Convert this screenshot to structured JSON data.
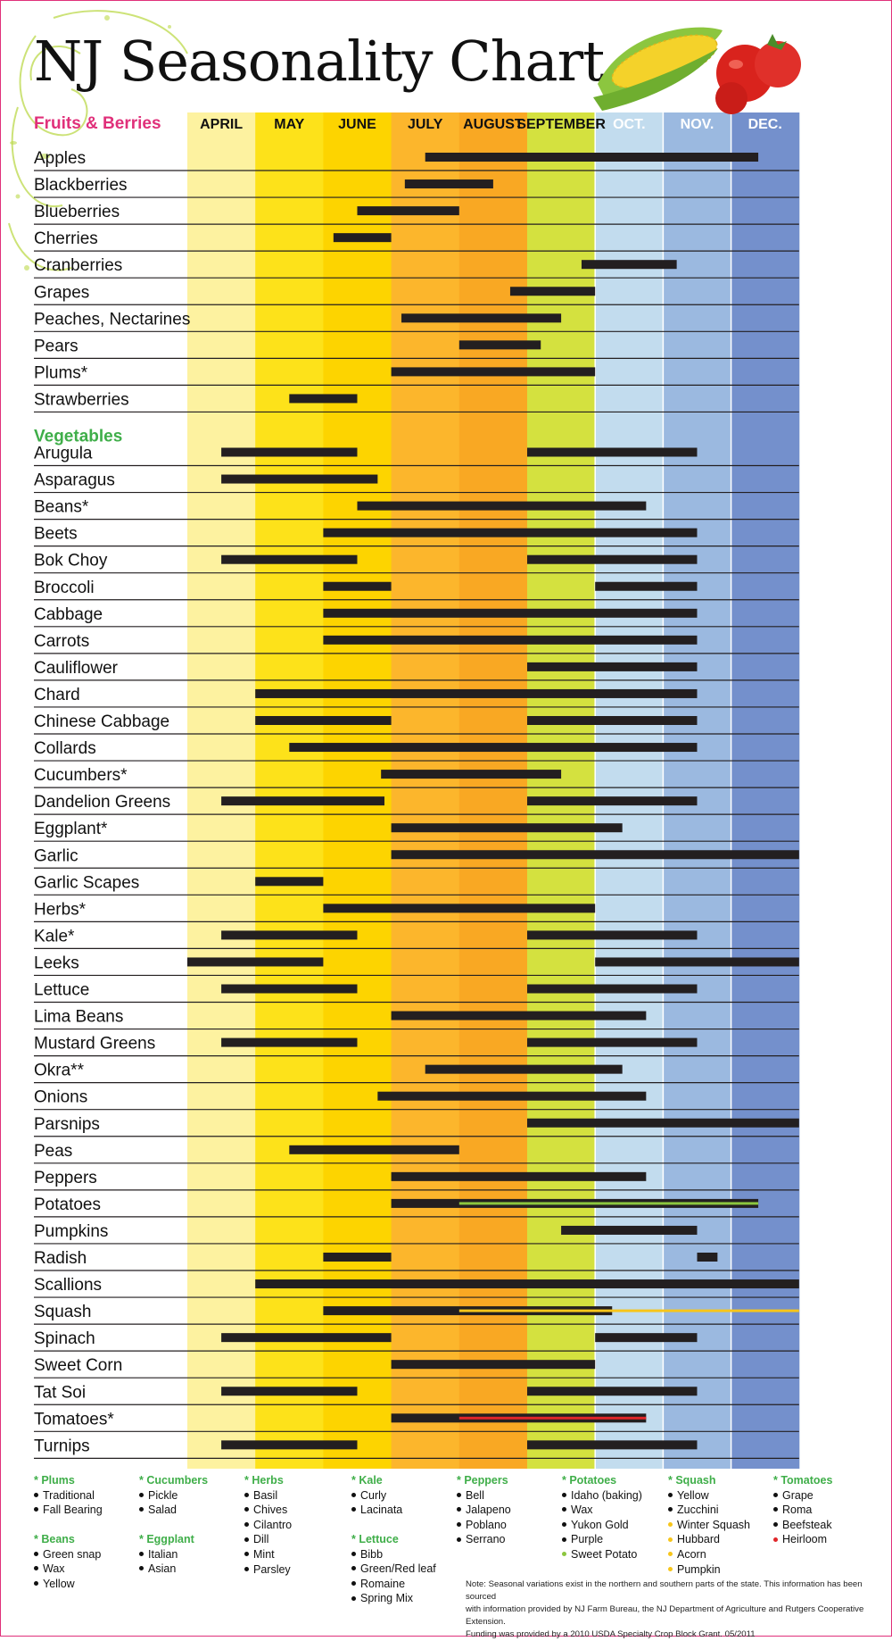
{
  "title": "NJ Seasonality Chart",
  "months": [
    "APRIL",
    "MAY",
    "JUNE",
    "JULY",
    "AUGUST",
    "SEPTEMBER",
    "OCT.",
    "NOV.",
    "DEC."
  ],
  "colors": {
    "month_bands": [
      "#fdf2a0",
      "#fde21a",
      "#fdd400",
      "#fcb62c",
      "#f9a823",
      "#d4e13f",
      "#c2dcee",
      "#9bb9e0",
      "#7490cc"
    ],
    "bar": "#231f20",
    "fruit_heading": "#e0307a",
    "veg_heading": "#3fae49",
    "month_header_text": "#111111",
    "month_header_text_light": "#ffffff",
    "yellow_variety": "#f7c51a",
    "red_variety": "#e0262a",
    "green_variety": "#8cc63f"
  },
  "chart_data": {
    "type": "gantt",
    "x_axis": "month",
    "x_unit": "month (0 = start of April, 9 = end of December)",
    "xlim": [
      0,
      9
    ],
    "sections": [
      {
        "label": "Fruits & Berries",
        "items": [
          {
            "name": "Apples",
            "ranges": [
              [
                3.5,
                8.4
              ]
            ]
          },
          {
            "name": "Blackberries",
            "ranges": [
              [
                3.2,
                4.5
              ]
            ]
          },
          {
            "name": "Blueberries",
            "ranges": [
              [
                2.5,
                4.0
              ]
            ]
          },
          {
            "name": "Cherries",
            "ranges": [
              [
                2.15,
                3.0
              ]
            ]
          },
          {
            "name": "Cranberries",
            "ranges": [
              [
                5.8,
                7.2
              ]
            ]
          },
          {
            "name": "Grapes",
            "ranges": [
              [
                4.75,
                6.0
              ]
            ]
          },
          {
            "name": "Peaches, Nectarines",
            "ranges": [
              [
                3.15,
                5.5
              ]
            ]
          },
          {
            "name": "Pears",
            "ranges": [
              [
                4.0,
                5.2
              ]
            ]
          },
          {
            "name": "Plums*",
            "ranges": [
              [
                3.0,
                6.0
              ]
            ]
          },
          {
            "name": "Strawberries",
            "ranges": [
              [
                1.5,
                2.5
              ]
            ]
          }
        ]
      },
      {
        "label": "Vegetables",
        "items": [
          {
            "name": "Arugula",
            "ranges": [
              [
                0.5,
                2.5
              ],
              [
                5.0,
                7.5
              ]
            ]
          },
          {
            "name": "Asparagus",
            "ranges": [
              [
                0.5,
                2.8
              ]
            ]
          },
          {
            "name": "Beans*",
            "ranges": [
              [
                2.5,
                6.75
              ]
            ]
          },
          {
            "name": "Beets",
            "ranges": [
              [
                2.0,
                7.5
              ]
            ]
          },
          {
            "name": "Bok Choy",
            "ranges": [
              [
                0.5,
                2.5
              ],
              [
                5.0,
                7.5
              ]
            ]
          },
          {
            "name": "Broccoli",
            "ranges": [
              [
                2.0,
                3.0
              ],
              [
                6.0,
                7.5
              ]
            ]
          },
          {
            "name": "Cabbage",
            "ranges": [
              [
                2.0,
                7.5
              ]
            ]
          },
          {
            "name": "Carrots",
            "ranges": [
              [
                2.0,
                7.5
              ]
            ]
          },
          {
            "name": "Cauliflower",
            "ranges": [
              [
                5.0,
                7.5
              ]
            ]
          },
          {
            "name": "Chard",
            "ranges": [
              [
                1.0,
                7.5
              ]
            ]
          },
          {
            "name": "Chinese Cabbage",
            "ranges": [
              [
                1.0,
                3.0
              ],
              [
                5.0,
                7.5
              ]
            ]
          },
          {
            "name": "Collards",
            "ranges": [
              [
                1.5,
                7.5
              ]
            ]
          },
          {
            "name": "Cucumbers*",
            "ranges": [
              [
                2.85,
                5.5
              ]
            ]
          },
          {
            "name": "Dandelion Greens",
            "ranges": [
              [
                0.5,
                2.9
              ],
              [
                5.0,
                7.5
              ]
            ]
          },
          {
            "name": "Eggplant*",
            "ranges": [
              [
                3.0,
                6.4
              ]
            ]
          },
          {
            "name": "Garlic",
            "ranges": [
              [
                3.0,
                9.0
              ]
            ]
          },
          {
            "name": "Garlic Scapes",
            "ranges": [
              [
                1.0,
                2.0
              ]
            ]
          },
          {
            "name": "Herbs*",
            "ranges": [
              [
                2.0,
                6.0
              ]
            ]
          },
          {
            "name": "Kale*",
            "ranges": [
              [
                0.5,
                2.5
              ],
              [
                5.0,
                7.5
              ]
            ]
          },
          {
            "name": "Leeks",
            "ranges": [
              [
                0.0,
                2.0
              ],
              [
                6.0,
                9.0
              ]
            ]
          },
          {
            "name": "Lettuce",
            "ranges": [
              [
                0.5,
                2.5
              ],
              [
                5.0,
                7.5
              ]
            ]
          },
          {
            "name": "Lima Beans",
            "ranges": [
              [
                3.0,
                6.75
              ]
            ]
          },
          {
            "name": "Mustard Greens",
            "ranges": [
              [
                0.5,
                2.5
              ],
              [
                5.0,
                7.5
              ]
            ]
          },
          {
            "name": "Okra**",
            "ranges": [
              [
                3.5,
                6.4
              ]
            ]
          },
          {
            "name": "Onions",
            "ranges": [
              [
                2.8,
                6.75
              ]
            ]
          },
          {
            "name": "Parsnips",
            "ranges": [
              [
                5.0,
                9.0
              ]
            ]
          },
          {
            "name": "Peas",
            "ranges": [
              [
                1.5,
                4.0
              ]
            ]
          },
          {
            "name": "Peppers",
            "ranges": [
              [
                3.0,
                6.75
              ]
            ]
          },
          {
            "name": "Potatoes",
            "ranges": [
              [
                3.0,
                8.4
              ]
            ],
            "accent": {
              "range": [
                4.0,
                8.4
              ],
              "color": "#8cc63f"
            }
          },
          {
            "name": "Pumpkins",
            "ranges": [
              [
                5.5,
                7.5
              ]
            ]
          },
          {
            "name": "Radish",
            "ranges": [
              [
                2.0,
                3.0
              ],
              [
                7.5,
                7.8
              ]
            ]
          },
          {
            "name": "Scallions",
            "ranges": [
              [
                1.0,
                9.0
              ]
            ]
          },
          {
            "name": "Squash",
            "ranges": [
              [
                2.0,
                6.25
              ]
            ],
            "accent": {
              "range": [
                4.0,
                9.0
              ],
              "color": "#f7c51a"
            }
          },
          {
            "name": "Spinach",
            "ranges": [
              [
                0.5,
                3.0
              ],
              [
                6.0,
                7.5
              ]
            ]
          },
          {
            "name": "Sweet Corn",
            "ranges": [
              [
                3.0,
                6.0
              ]
            ]
          },
          {
            "name": "Tat Soi",
            "ranges": [
              [
                0.5,
                2.5
              ],
              [
                5.0,
                7.5
              ]
            ]
          },
          {
            "name": "Tomatoes*",
            "ranges": [
              [
                3.0,
                6.75
              ]
            ],
            "accent": {
              "range": [
                4.0,
                6.75
              ],
              "color": "#e0262a"
            }
          },
          {
            "name": "Turnips",
            "ranges": [
              [
                0.5,
                2.5
              ],
              [
                5.0,
                7.5
              ]
            ]
          }
        ]
      }
    ]
  },
  "notes": [
    {
      "head": "* Plums",
      "items": [
        {
          "t": "Traditional"
        },
        {
          "t": "Fall Bearing"
        }
      ]
    },
    {
      "head": "* Cucumbers",
      "items": [
        {
          "t": "Pickle"
        },
        {
          "t": "Salad"
        }
      ]
    },
    {
      "head": "* Herbs",
      "items": [
        {
          "t": "Basil"
        },
        {
          "t": "Chives"
        },
        {
          "t": "Cilantro"
        },
        {
          "t": "Dill"
        },
        {
          "t": "Mint"
        },
        {
          "t": "Parsley"
        }
      ]
    },
    {
      "head": "* Kale",
      "items": [
        {
          "t": "Curly"
        },
        {
          "t": "Lacinata"
        }
      ]
    },
    {
      "head": "* Peppers",
      "items": [
        {
          "t": "Bell"
        },
        {
          "t": "Jalapeno"
        },
        {
          "t": "Poblano"
        },
        {
          "t": "Serrano"
        }
      ]
    },
    {
      "head": "* Potatoes",
      "items": [
        {
          "t": "Idaho (baking)"
        },
        {
          "t": "Wax"
        },
        {
          "t": "Yukon Gold"
        },
        {
          "t": "Purple"
        },
        {
          "t": "Sweet Potato",
          "c": "#8cc63f"
        }
      ]
    },
    {
      "head": "* Squash",
      "items": [
        {
          "t": "Yellow"
        },
        {
          "t": "Zucchini"
        },
        {
          "t": "Winter Squash",
          "c": "#f7c51a"
        },
        {
          "t": "Hubbard",
          "c": "#f7c51a"
        },
        {
          "t": "Acorn",
          "c": "#f7c51a"
        },
        {
          "t": "Pumpkin",
          "c": "#f7c51a"
        }
      ]
    },
    {
      "head": "* Tomatoes",
      "items": [
        {
          "t": "Grape"
        },
        {
          "t": "Roma"
        },
        {
          "t": "Beefsteak"
        },
        {
          "t": "Heirloom",
          "c": "#e0262a"
        }
      ]
    },
    {
      "head": "* Beans",
      "items": [
        {
          "t": "Green snap"
        },
        {
          "t": "Wax"
        },
        {
          "t": "Yellow"
        }
      ]
    },
    {
      "head": "* Eggplant",
      "items": [
        {
          "t": "Italian"
        },
        {
          "t": "Asian"
        }
      ]
    },
    {
      "head": "* Lettuce",
      "items": [
        {
          "t": "Bibb"
        },
        {
          "t": "Green/Red leaf"
        },
        {
          "t": "Romaine"
        },
        {
          "t": "Spring Mix"
        }
      ]
    }
  ],
  "footnote": [
    "Note: Seasonal variations exist in the northern and southern parts of the state. This information has been sourced",
    "with information provided by NJ Farm Bureau, the NJ Department of Agriculture and Rutgers Cooperative Extension.",
    "Funding was provided by a 2010 USDA Specialty Crop Block Grant.  05/2011"
  ]
}
